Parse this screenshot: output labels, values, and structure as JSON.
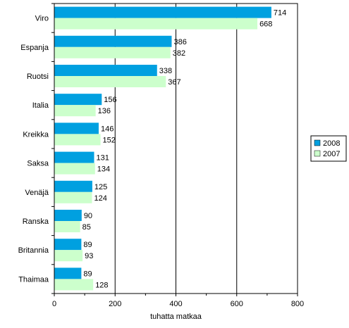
{
  "chart_data": {
    "type": "bar",
    "orientation": "horizontal",
    "categories": [
      "Viro",
      "Espanja",
      "Ruotsi",
      "Italia",
      "Kreikka",
      "Saksa",
      "Venäjä",
      "Ranska",
      "Britannia",
      "Thaimaa"
    ],
    "series": [
      {
        "name": "2008",
        "values": [
          714,
          386,
          338,
          156,
          146,
          131,
          125,
          90,
          89,
          89
        ],
        "color": "#00A0E0"
      },
      {
        "name": "2007",
        "values": [
          668,
          382,
          367,
          136,
          152,
          134,
          124,
          85,
          93,
          128
        ],
        "color": "#CCFFCC"
      }
    ],
    "xlabel": "tuhatta matkaa",
    "xlim": [
      0,
      800
    ],
    "xticks": [
      "0",
      "200",
      "400",
      "600",
      "800"
    ],
    "grid": true,
    "legend_position": "right"
  }
}
